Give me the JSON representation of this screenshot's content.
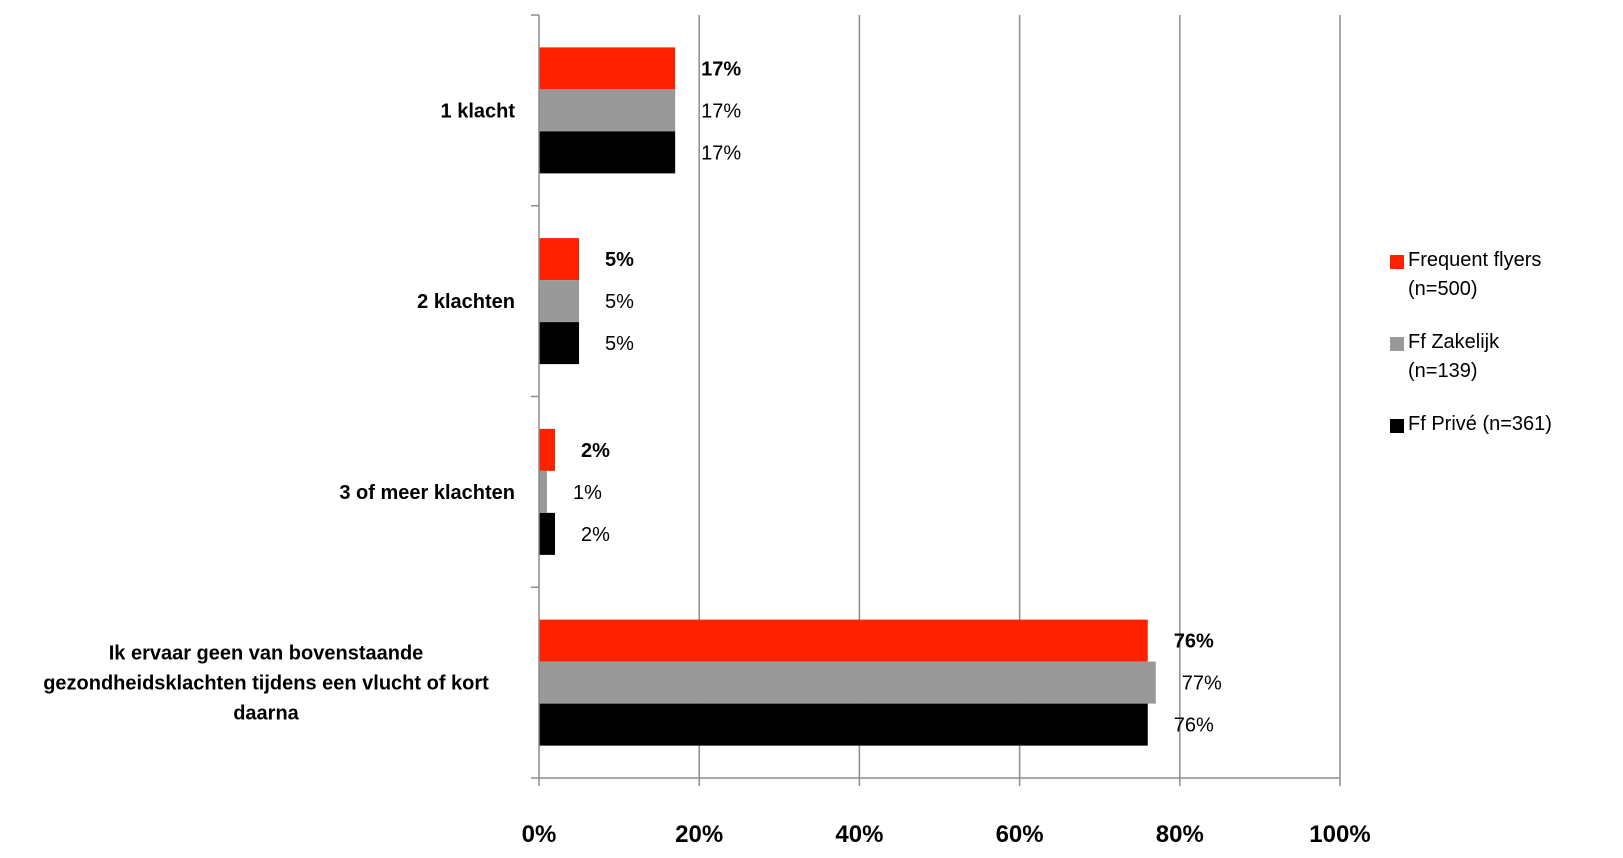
{
  "chart_data": {
    "type": "bar",
    "orientation": "horizontal",
    "categories": [
      "1 klacht",
      "2 klachten",
      "3 of meer klachten",
      "Ik ervaar geen van bovenstaande gezondheidsklachten tijdens een vlucht of kort daarna"
    ],
    "series": [
      {
        "name": "Frequent flyers (n=500)",
        "color": "#ff2200",
        "values": [
          17,
          5,
          2,
          76
        ],
        "labels": [
          "17%",
          "5%",
          "2%",
          "76%"
        ],
        "label_bold": true
      },
      {
        "name": "Ff Zakelijk (n=139)",
        "color": "#999999",
        "values": [
          17,
          5,
          1,
          77
        ],
        "labels": [
          "17%",
          "5%",
          "1%",
          "77%"
        ],
        "label_bold": false
      },
      {
        "name": "Ff Privé (n=361)",
        "color": "#000000",
        "values": [
          17,
          5,
          2,
          76
        ],
        "labels": [
          "17%",
          "5%",
          "2%",
          "76%"
        ],
        "label_bold": false
      }
    ],
    "xlim": [
      0,
      100
    ],
    "xticks": [
      "0%",
      "20%",
      "40%",
      "60%",
      "80%",
      "100%"
    ],
    "grid": true,
    "legend_position": "right"
  },
  "legend": {
    "items": [
      {
        "label": "Frequent flyers\n(n=500)",
        "color": "#ff2200"
      },
      {
        "label": "Ff Zakelijk\n(n=139)",
        "color": "#999999"
      },
      {
        "label": "Ff Privé (n=361)",
        "color": "#000000"
      }
    ]
  }
}
